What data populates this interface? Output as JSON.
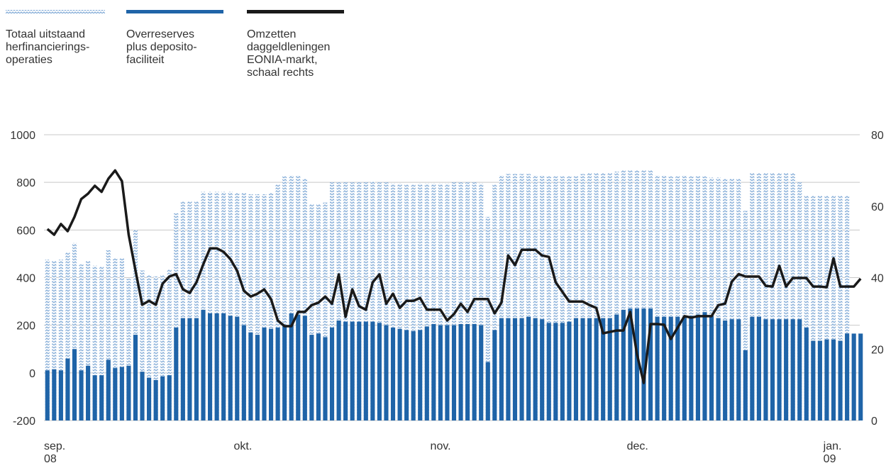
{
  "chart_data": {
    "type": "bar",
    "categories": [
      "sep.\n08",
      null,
      null,
      null,
      null,
      null,
      null,
      null,
      null,
      null,
      null,
      null,
      null,
      null,
      null,
      null,
      null,
      null,
      null,
      null,
      null,
      null,
      null,
      null,
      null,
      null,
      null,
      null,
      "okt.",
      null,
      null,
      null,
      null,
      null,
      null,
      null,
      null,
      null,
      null,
      null,
      null,
      null,
      null,
      null,
      null,
      null,
      null,
      null,
      null,
      null,
      null,
      null,
      null,
      null,
      null,
      null,
      null,
      "nov.",
      null,
      null,
      null,
      null,
      null,
      null,
      null,
      null,
      null,
      null,
      null,
      null,
      null,
      null,
      null,
      null,
      null,
      null,
      null,
      null,
      null,
      null,
      null,
      null,
      null,
      null,
      null,
      null,
      "dec.",
      null,
      null,
      null,
      null,
      null,
      null,
      null,
      null,
      null,
      null,
      null,
      null,
      null,
      null,
      null,
      null,
      null,
      null,
      null,
      null,
      null,
      null,
      null,
      null,
      null,
      null,
      null,
      null,
      "jan.\n09",
      null,
      null,
      null,
      null,
      null
    ],
    "series": [
      {
        "name": "Totaal uitstaand\nherfinancierings-\noperaties",
        "color": "#7fa9d6",
        "hatch": true,
        "values": [
          475,
          470,
          475,
          505,
          545,
          455,
          470,
          450,
          445,
          515,
          480,
          480,
          395,
          600,
          430,
          410,
          405,
          410,
          435,
          670,
          720,
          720,
          720,
          760,
          760,
          760,
          760,
          760,
          755,
          755,
          750,
          750,
          750,
          755,
          790,
          825,
          830,
          830,
          815,
          710,
          710,
          715,
          800,
          800,
          800,
          800,
          800,
          800,
          805,
          800,
          800,
          795,
          795,
          790,
          790,
          795,
          795,
          795,
          795,
          795,
          800,
          800,
          800,
          800,
          795,
          655,
          790,
          830,
          835,
          835,
          835,
          835,
          830,
          830,
          825,
          825,
          825,
          825,
          825,
          835,
          840,
          840,
          840,
          840,
          845,
          850,
          850,
          850,
          850,
          850,
          830,
          830,
          825,
          825,
          830,
          825,
          825,
          825,
          820,
          820,
          815,
          815,
          815,
          680,
          840,
          840,
          840,
          840,
          840,
          840,
          840,
          800,
          745,
          745,
          745,
          745,
          745,
          745,
          745,
          null,
          null
        ]
      },
      {
        "name": "Overreserves\nplus deposito-\nfaciliteit",
        "color": "#1f64a8",
        "values": [
          10,
          15,
          10,
          60,
          100,
          10,
          30,
          -10,
          -10,
          55,
          20,
          25,
          30,
          160,
          5,
          -20,
          -30,
          -15,
          -10,
          190,
          230,
          230,
          230,
          265,
          250,
          250,
          250,
          240,
          235,
          200,
          170,
          160,
          190,
          185,
          190,
          200,
          250,
          245,
          240,
          160,
          165,
          150,
          190,
          220,
          215,
          215,
          215,
          215,
          215,
          210,
          200,
          190,
          185,
          180,
          175,
          180,
          195,
          205,
          200,
          200,
          200,
          205,
          205,
          205,
          200,
          45,
          180,
          230,
          230,
          230,
          230,
          235,
          230,
          225,
          210,
          210,
          210,
          215,
          230,
          230,
          230,
          230,
          230,
          230,
          245,
          265,
          270,
          270,
          270,
          270,
          235,
          235,
          235,
          235,
          235,
          240,
          245,
          255,
          240,
          230,
          220,
          225,
          225,
          95,
          235,
          235,
          225,
          225,
          225,
          225,
          225,
          225,
          190,
          135,
          135,
          140,
          140,
          135,
          165,
          165,
          165
        ]
      },
      {
        "name": "Omzetten\ndaggeldleningen\nEONIA-markt,\nschaal rechts",
        "color": "#1a1a1a",
        "type": "line",
        "axis": "y2",
        "values": [
          53.6,
          52,
          55,
          53,
          57,
          62,
          63.5,
          65.7,
          64,
          67.7,
          70,
          67,
          52,
          42,
          32.4,
          33.5,
          32.4,
          38.3,
          40.3,
          41,
          36.7,
          35.7,
          38.7,
          43.7,
          48.2,
          48.2,
          47.2,
          45.2,
          41.9,
          36.3,
          34.7,
          35.5,
          36.7,
          34,
          28,
          26.4,
          26.4,
          30.4,
          30.4,
          32.3,
          33,
          34.7,
          32.7,
          40.9,
          29,
          36.7,
          32,
          31,
          38.7,
          40.9,
          32.7,
          35.5,
          31.5,
          33.5,
          33.5,
          34.3,
          31,
          31,
          31,
          28,
          29.8,
          32.7,
          30.4,
          34,
          34,
          34,
          30,
          33,
          46.2,
          43.5,
          47.8,
          47.8,
          47.8,
          46.2,
          45.8,
          38.7,
          36,
          33.3,
          33.3,
          33.3,
          32.3,
          31.5,
          24.4,
          24.8,
          25.2,
          25.2,
          30.4,
          18.5,
          10.5,
          27,
          27,
          26.8,
          22.8,
          26,
          29.2,
          28.8,
          29.2,
          29.2,
          29.2,
          32.3,
          32.7,
          38.9,
          41,
          40.3,
          40.3,
          40.3,
          37.7,
          37.5,
          43.3,
          37.5,
          39.9,
          39.9,
          39.9,
          37.5,
          37.5,
          37.3,
          45.4,
          37.5,
          37.5,
          37.5,
          39.7
        ]
      }
    ],
    "ylim": [
      -200,
      1000
    ],
    "yticks": [
      -200,
      0,
      200,
      400,
      600,
      800,
      1000
    ],
    "y2lim": [
      0,
      80
    ],
    "y2ticks": [
      0,
      20,
      40,
      60,
      80
    ],
    "grid": true
  }
}
